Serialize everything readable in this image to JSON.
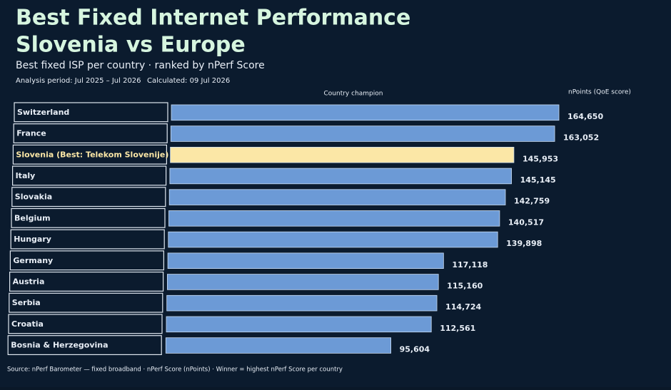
{
  "chart_data": {
    "type": "bar",
    "title": [
      "Best Fixed Internet Performance",
      "Slovenia vs Europe"
    ],
    "subtitle": "Best fixed ISP per country · ranked by nPerf Score",
    "analysis_period": "Analysis period: Jul 2025 – Jul 2026",
    "calculated": "Calculated: 09 Jul 2026",
    "category_header": "Country champion",
    "value_header": "nPoints (QoE score)",
    "source": "Source: nPerf Barometer — fixed broadband · nPerf Score (nPoints) · Winner = highest nPerf Score per country",
    "categories": [
      "Switzerland",
      "France",
      "Slovenia (Best: Telekom Slovenije)",
      "Italy",
      "Slovakia",
      "Belgium",
      "Hungary",
      "Germany",
      "Austria",
      "Serbia",
      "Croatia",
      "Bosnia & Herzegovina"
    ],
    "values": [
      164650,
      163052,
      145953,
      145145,
      142759,
      140517,
      139898,
      117118,
      115160,
      114724,
      112561,
      95604
    ],
    "value_labels": [
      "164,650",
      "163,052",
      "145,953",
      "145,145",
      "142,759",
      "140,517",
      "139,898",
      "117,118",
      "115,160",
      "114,724",
      "112,561",
      "95,604"
    ],
    "colors": [
      "#6c9ad6",
      "#6c9ad6",
      "#fbe7a6",
      "#6c9ad6",
      "#6c9ad6",
      "#6c9ad6",
      "#6c9ad6",
      "#6c9ad6",
      "#6c9ad6",
      "#6c9ad6",
      "#6c9ad6",
      "#6c9ad6"
    ]
  }
}
